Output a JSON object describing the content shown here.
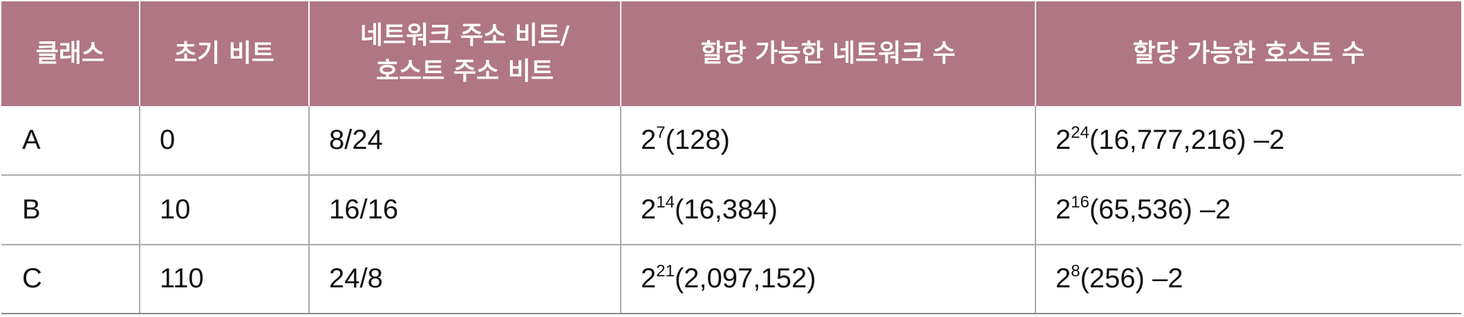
{
  "table": {
    "headers": [
      [
        "클래스"
      ],
      [
        "초기 비트"
      ],
      [
        "네트워크 주소 비트/",
        "호스트 주소 비트"
      ],
      [
        "할당 가능한 네트워크 수"
      ],
      [
        "할당 가능한 호스트 수"
      ]
    ],
    "rows": [
      {
        "class": "A",
        "initial_bits": "0",
        "bits": "8/24",
        "networks": {
          "base": "2",
          "exp": "7",
          "rest": "(128)"
        },
        "hosts": {
          "base": "2",
          "exp": "24",
          "rest": "(16,777,216) –2"
        }
      },
      {
        "class": "B",
        "initial_bits": "10",
        "bits": "16/16",
        "networks": {
          "base": "2",
          "exp": "14",
          "rest": "(16,384)"
        },
        "hosts": {
          "base": "2",
          "exp": "16",
          "rest": "(65,536) –2"
        }
      },
      {
        "class": "C",
        "initial_bits": "110",
        "bits": "24/8",
        "networks": {
          "base": "2",
          "exp": "21",
          "rest": "(2,097,152)"
        },
        "hosts": {
          "base": "2",
          "exp": "8",
          "rest": "(256) –2"
        }
      }
    ]
  },
  "colors": {
    "header_background": "#b07684",
    "header_text": "#ffffff",
    "grid_line": "#a9a9a9"
  }
}
